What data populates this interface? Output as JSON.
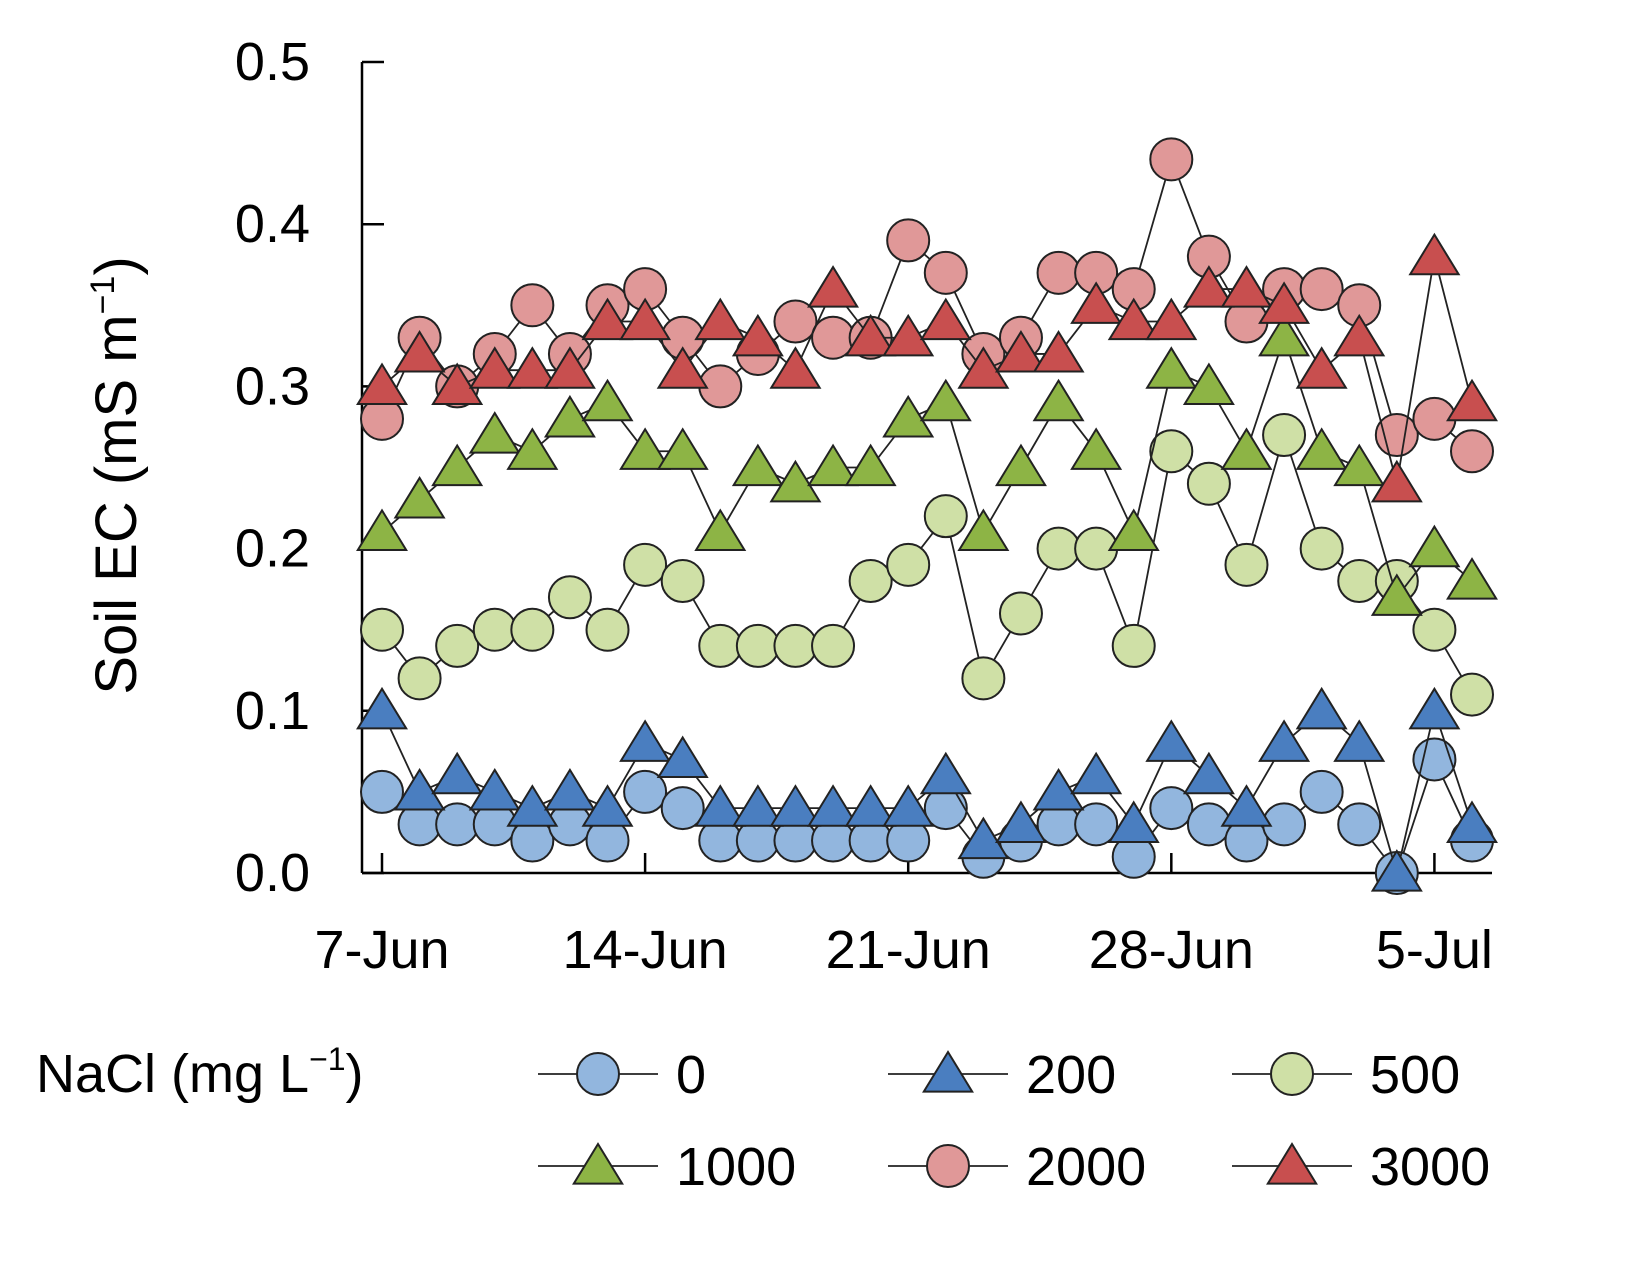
{
  "chart_data": {
    "type": "line",
    "title": "",
    "ylabel": "Soil EC (mS m",
    "ylabel_sup": "−1",
    "ylabel_close": ")",
    "xlabel": "",
    "ylim": [
      0,
      0.5
    ],
    "yticks": [
      0.0,
      0.1,
      0.2,
      0.3,
      0.4,
      0.5
    ],
    "ytick_labels": [
      "0.0",
      "0.1",
      "0.2",
      "0.3",
      "0.4",
      "0.5"
    ],
    "x_start_day": 7,
    "x_end_day": 36,
    "xticks": [
      7,
      14,
      21,
      28,
      35
    ],
    "xtick_labels": [
      "7-Jun",
      "14-Jun",
      "21-Jun",
      "28-Jun",
      "5-Jul"
    ],
    "x": [
      7,
      8,
      9,
      10,
      11,
      12,
      13,
      14,
      15,
      16,
      17,
      18,
      19,
      20,
      21,
      22,
      23,
      24,
      25,
      26,
      27,
      28,
      29,
      30,
      31,
      32,
      33,
      34,
      35,
      36
    ],
    "legend_title": "NaCl (mg L",
    "legend_title_sup": "−1",
    "legend_title_close": ")",
    "series": [
      {
        "name": "0",
        "marker": "circle",
        "color": "#92b6de",
        "values": [
          0.05,
          0.03,
          0.03,
          0.03,
          0.02,
          0.03,
          0.02,
          0.05,
          0.04,
          0.02,
          0.02,
          0.02,
          0.02,
          0.02,
          0.02,
          0.04,
          0.01,
          0.02,
          0.03,
          0.03,
          0.01,
          0.04,
          0.03,
          0.02,
          0.03,
          0.05,
          0.03,
          0.0,
          0.07,
          0.02
        ]
      },
      {
        "name": "200",
        "marker": "triangle",
        "color": "#4a7ec0",
        "values": [
          0.1,
          0.05,
          0.06,
          0.05,
          0.04,
          0.05,
          0.04,
          0.08,
          0.07,
          0.04,
          0.04,
          0.04,
          0.04,
          0.04,
          0.04,
          0.06,
          0.02,
          0.03,
          0.05,
          0.06,
          0.03,
          0.08,
          0.06,
          0.04,
          0.08,
          0.1,
          0.08,
          0.0,
          0.1,
          0.03
        ]
      },
      {
        "name": "500",
        "marker": "circle",
        "color": "#cfe0a6",
        "values": [
          0.15,
          0.12,
          0.14,
          0.15,
          0.15,
          0.17,
          0.15,
          0.19,
          0.18,
          0.14,
          0.14,
          0.14,
          0.14,
          0.18,
          0.19,
          0.22,
          0.12,
          0.16,
          0.2,
          0.2,
          0.14,
          0.26,
          0.24,
          0.19,
          0.27,
          0.2,
          0.18,
          0.18,
          0.15,
          0.11
        ]
      },
      {
        "name": "1000",
        "marker": "triangle",
        "color": "#8db445",
        "values": [
          0.21,
          0.23,
          0.25,
          0.27,
          0.26,
          0.28,
          0.29,
          0.26,
          0.26,
          0.21,
          0.25,
          0.24,
          0.25,
          0.25,
          0.28,
          0.29,
          0.21,
          0.25,
          0.29,
          0.26,
          0.21,
          0.31,
          0.3,
          0.26,
          0.33,
          0.26,
          0.25,
          0.17,
          0.2,
          0.18
        ]
      },
      {
        "name": "2000",
        "marker": "circle",
        "color": "#e09898",
        "values": [
          0.28,
          0.33,
          0.3,
          0.32,
          0.35,
          0.32,
          0.35,
          0.36,
          0.33,
          0.3,
          0.32,
          0.34,
          0.33,
          0.33,
          0.39,
          0.37,
          0.32,
          0.33,
          0.37,
          0.37,
          0.36,
          0.44,
          0.38,
          0.34,
          0.36,
          0.36,
          0.35,
          0.27,
          0.28,
          0.26
        ]
      },
      {
        "name": "3000",
        "marker": "triangle",
        "color": "#c84f4f",
        "values": [
          0.3,
          0.32,
          0.3,
          0.31,
          0.31,
          0.31,
          0.34,
          0.34,
          0.31,
          0.34,
          0.33,
          0.31,
          0.36,
          0.33,
          0.33,
          0.34,
          0.31,
          0.32,
          0.32,
          0.35,
          0.34,
          0.34,
          0.36,
          0.36,
          0.35,
          0.31,
          0.33,
          0.24,
          0.38,
          0.29
        ]
      }
    ]
  }
}
